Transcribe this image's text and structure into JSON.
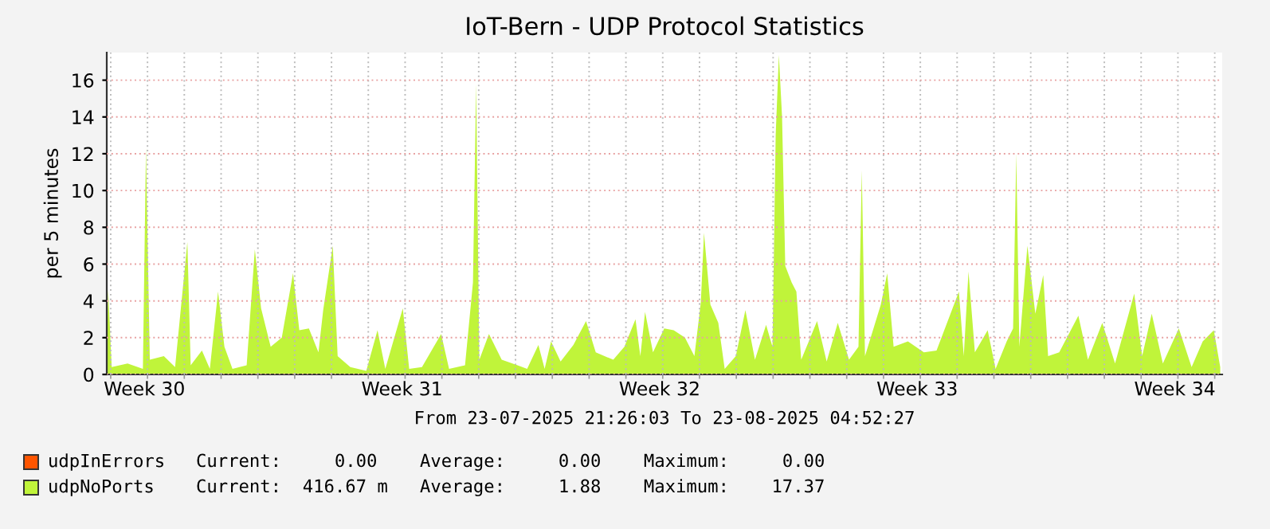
{
  "chart_data": {
    "type": "area",
    "title": "IoT-Bern - UDP Protocol Statistics",
    "ylabel": "per 5 minutes",
    "annotations": [
      "From 23-07-2025 21:26:03 To 23-08-2025 04:52:27",
      "Current:     0.00    Average:     0.00    Maximum:     0.00",
      "Current:  416.67 m   Average:     1.88    Maximum:    17.37"
    ],
    "xlim": [
      "2025-07-23T21:26",
      "2025-08-23T04:52"
    ],
    "xticks": [
      {
        "value": "2025-07-24T22:00",
        "label": "Week 30"
      },
      {
        "value": "2025-07-31T22:00",
        "label": "Week 31"
      },
      {
        "value": "2025-08-07T22:00",
        "label": "Week 32"
      },
      {
        "value": "2025-08-14T22:00",
        "label": "Week 33"
      },
      {
        "value": "2025-08-21T22:00",
        "label": "Week 34"
      },
      {
        "value": "2025-07-24",
        "label": null
      },
      {
        "value": "2025-07-25",
        "label": null
      },
      {
        "value": "2025-07-26",
        "label": null
      },
      {
        "value": "2025-07-27",
        "label": null
      },
      {
        "value": "2025-07-28",
        "label": null
      },
      {
        "value": "2025-07-29",
        "label": null
      },
      {
        "value": "2025-07-30",
        "label": null
      },
      {
        "value": "2025-07-31",
        "label": null
      },
      {
        "value": "2025-08-01",
        "label": null
      },
      {
        "value": "2025-08-02",
        "label": null
      },
      {
        "value": "2025-08-03",
        "label": null
      },
      {
        "value": "2025-08-04",
        "label": null
      },
      {
        "value": "2025-08-05",
        "label": null
      },
      {
        "value": "2025-08-06",
        "label": null
      },
      {
        "value": "2025-08-07",
        "label": null
      },
      {
        "value": "2025-08-08",
        "label": null
      },
      {
        "value": "2025-08-09",
        "label": null
      },
      {
        "value": "2025-08-10",
        "label": null
      },
      {
        "value": "2025-08-11",
        "label": null
      },
      {
        "value": "2025-08-12",
        "label": null
      },
      {
        "value": "2025-08-13",
        "label": null
      },
      {
        "value": "2025-08-14",
        "label": null
      },
      {
        "value": "2025-08-15",
        "label": null
      },
      {
        "value": "2025-08-16",
        "label": null
      },
      {
        "value": "2025-08-17",
        "label": null
      },
      {
        "value": "2025-08-18",
        "label": null
      },
      {
        "value": "2025-08-19",
        "label": null
      },
      {
        "value": "2025-08-20",
        "label": null
      },
      {
        "value": "2025-08-21",
        "label": null
      },
      {
        "value": "2025-08-22",
        "label": null
      },
      {
        "value": "2025-08-23",
        "label": null
      }
    ],
    "ylim": [
      0,
      17.5
    ],
    "yticks": [
      0,
      2,
      4,
      6,
      8,
      10,
      12,
      14,
      16
    ],
    "grid": true,
    "legend": "bottom left",
    "series": [
      {
        "name": "udpInErrors",
        "color": "#ff5500"
      },
      {
        "name": "udpNoPorts",
        "color": "#c0f43a",
        "x": [
          "2025-07-23T21:26",
          "2025-07-23T22:20",
          "2025-07-24T00:40",
          "2025-07-24T11:00",
          "2025-07-24T21:00",
          "2025-07-24T23:00",
          "2025-07-25T01:30",
          "2025-07-25T10:40",
          "2025-07-25T18:00",
          "2025-07-26T02:00",
          "2025-07-26T04:10",
          "2025-07-26T11:30",
          "2025-07-26T16:40",
          "2025-07-26T22:00",
          "2025-07-27T02:10",
          "2025-07-27T07:25",
          "2025-07-27T16:40",
          "2025-07-27T22:00",
          "2025-07-28T02:05",
          "2025-07-28T08:20",
          "2025-07-28T15:35",
          "2025-07-28T22:55",
          "2025-07-29T03:00",
          "2025-07-29T09:15",
          "2025-07-29T15:30",
          "2025-07-29T18:35",
          "2025-07-30T00:50",
          "2025-07-30T04:00",
          "2025-07-30T12:15",
          "2025-07-30T22:40",
          "2025-07-31T06:00",
          "2025-07-31T11:05",
          "2025-07-31T22:30",
          "2025-08-01T02:40",
          "2025-08-01T11:00",
          "2025-08-01T23:30",
          "2025-08-02T04:40",
          "2025-08-02T15:05",
          "2025-08-02T20:15",
          "2025-08-02T22:20",
          "2025-08-03T00:25",
          "2025-08-03T06:40",
          "2025-08-03T15:00",
          "2025-08-04T01:20",
          "2025-08-04T07:35",
          "2025-08-04T14:55",
          "2025-08-04T19:00",
          "2025-08-04T23:10",
          "2025-08-05T05:25",
          "2025-08-05T13:45",
          "2025-08-05T22:00",
          "2025-08-06T04:20",
          "2025-08-06T15:45",
          "2025-08-06T23:00",
          "2025-08-07T06:15",
          "2025-08-07T09:25",
          "2025-08-07T12:30",
          "2025-08-07T17:40",
          "2025-08-08T01:00",
          "2025-08-08T07:10",
          "2025-08-08T14:30",
          "2025-08-08T20:40",
          "2025-08-09T00:50",
          "2025-08-09T02:55",
          "2025-08-09T07:05",
          "2025-08-09T12:15",
          "2025-08-09T16:25",
          "2025-08-09T23:40",
          "2025-08-10T05:55",
          "2025-08-10T12:10",
          "2025-08-10T19:25",
          "2025-08-10T23:35",
          "2025-08-11T01:40",
          "2025-08-11T03:45",
          "2025-08-11T05:50",
          "2025-08-11T07:55",
          "2025-08-11T12:05",
          "2025-08-11T15:10",
          "2025-08-11T18:20",
          "2025-08-12T04:40",
          "2025-08-12T10:55",
          "2025-08-12T18:10",
          "2025-08-13T01:30",
          "2025-08-13T07:40",
          "2025-08-13T09:50",
          "2025-08-13T11:55",
          "2025-08-13T22:15",
          "2025-08-14T02:25",
          "2025-08-14T06:35",
          "2025-08-14T15:55",
          "2025-08-15T02:20",
          "2025-08-15T10:35",
          "2025-08-16T01:10",
          "2025-08-16T04:20",
          "2025-08-16T07:25",
          "2025-08-16T11:35",
          "2025-08-16T19:55",
          "2025-08-17T01:05",
          "2025-08-17T08:20",
          "2025-08-17T12:30",
          "2025-08-17T14:35",
          "2025-08-17T16:35",
          "2025-08-17T21:50",
          "2025-08-18T03:00",
          "2025-08-18T08:10",
          "2025-08-18T11:20",
          "2025-08-18T18:35",
          "2025-08-19T07:05",
          "2025-08-19T13:20",
          "2025-08-19T22:40",
          "2025-08-20T07:00",
          "2025-08-20T19:30",
          "2025-08-21T00:40",
          "2025-08-21T06:55",
          "2025-08-21T14:10",
          "2025-08-22T00:35",
          "2025-08-22T08:55",
          "2025-08-22T16:10",
          "2025-08-22T23:25",
          "2025-08-23T03:35"
        ],
        "values": [
          0.3,
          4.6,
          0.4,
          0.6,
          0.3,
          12.3,
          0.8,
          1.0,
          0.4,
          7.2,
          0.5,
          1.3,
          0.3,
          4.5,
          1.5,
          0.3,
          0.5,
          6.8,
          3.6,
          1.5,
          2.0,
          5.5,
          2.4,
          2.5,
          1.2,
          3.5,
          7.0,
          1.0,
          0.4,
          0.2,
          2.4,
          0.3,
          3.6,
          0.3,
          0.4,
          2.2,
          0.3,
          0.5,
          5.0,
          15.8,
          0.8,
          2.2,
          0.8,
          0.5,
          0.3,
          1.6,
          0.3,
          1.8,
          0.7,
          1.6,
          2.9,
          1.2,
          0.8,
          1.5,
          3.0,
          1.0,
          3.4,
          1.2,
          2.5,
          2.4,
          2.0,
          1.0,
          3.9,
          7.7,
          3.8,
          2.8,
          0.3,
          1.0,
          3.5,
          0.8,
          2.7,
          1.5,
          13.0,
          17.37,
          14.0,
          5.9,
          5.0,
          4.5,
          0.8,
          2.9,
          0.7,
          2.8,
          0.8,
          1.5,
          11.1,
          1.0,
          3.8,
          5.5,
          1.5,
          1.8,
          1.2,
          1.3,
          4.5,
          1.0,
          5.6,
          1.2,
          2.4,
          0.3,
          1.8,
          2.5,
          12.0,
          1.5,
          7.0,
          3.3,
          5.4,
          1.0,
          1.2,
          3.2,
          0.8,
          2.8,
          0.6,
          4.4,
          1.0,
          3.3,
          0.6,
          2.5,
          0.4,
          1.8,
          2.4,
          0.4
        ]
      }
    ]
  }
}
